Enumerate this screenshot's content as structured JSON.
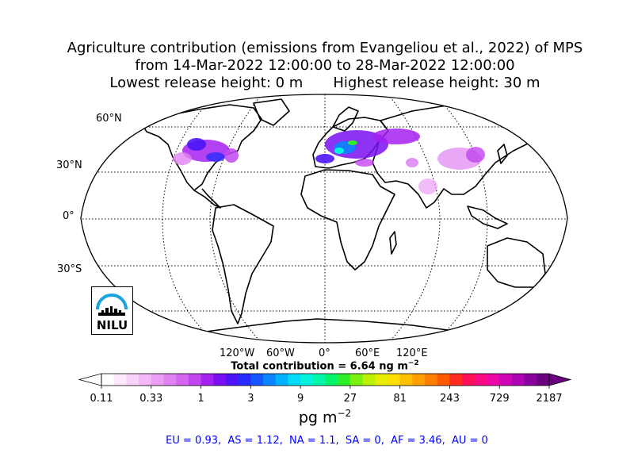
{
  "title": {
    "line1": "Agriculture contribution (emissions from Evangeliou et al., 2022) of MPS",
    "line2": "from 14-Mar-2022 12:00:00 to 28-Mar-2022 12:00:00",
    "line3a": "Lowest release height: 0 m",
    "line3b": "Highest release height: 30 m"
  },
  "map": {
    "projection": "Robinson",
    "lat_labels": [
      "60°N",
      "30°N",
      "0°",
      "30°S"
    ],
    "lon_labels": [
      "120°W",
      "60°W",
      "0°",
      "60°E",
      "120°E"
    ],
    "colors": {
      "land_outline": "#000000",
      "grid": "#000000"
    }
  },
  "total": {
    "text": "Total contribution = 6.64 ng m",
    "exp": "−2"
  },
  "colorbar": {
    "tick_labels": [
      "0.11",
      "0.33",
      "1",
      "3",
      "9",
      "27",
      "81",
      "243",
      "729",
      "2187"
    ],
    "unit_text": "pg m",
    "unit_exp": "−2",
    "scale": "log",
    "colors": [
      "#ffffff",
      "#fde9fd",
      "#f9d2fb",
      "#f2b8f7",
      "#eb9ff4",
      "#e083f2",
      "#d466f0",
      "#c245f0",
      "#a421ef",
      "#7a0ff2",
      "#4d14f7",
      "#2a2cff",
      "#1656ff",
      "#0a84ff",
      "#00b2ff",
      "#00dcf7",
      "#00f5dc",
      "#00f8a8",
      "#00f56a",
      "#2cef29",
      "#7af00f",
      "#bcf201",
      "#e7ee00",
      "#ffde00",
      "#ffc000",
      "#ffa000",
      "#ff7f00",
      "#ff5a00",
      "#ff2a22",
      "#ff0f5a",
      "#fb0a86",
      "#ea08a6",
      "#cf06b6",
      "#ae04b2",
      "#8a029e",
      "#6a0080"
    ]
  },
  "regions": {
    "text": "EU = 0.93,  AS = 1.12,  NA = 1.1,  SA = 0,  AF = 3.46,  AU = 0"
  },
  "logo": {
    "text": "NILU"
  }
}
